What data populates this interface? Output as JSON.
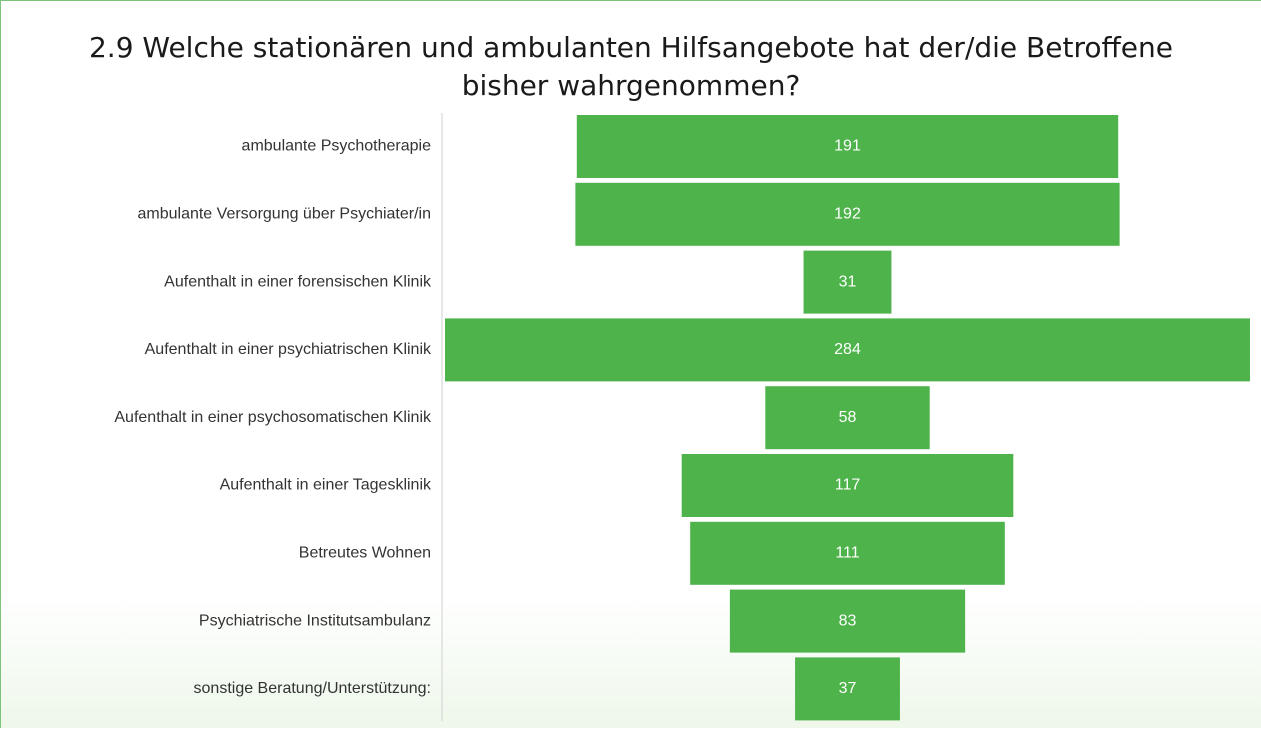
{
  "chart_data": {
    "type": "funnel",
    "title": "2.9 Welche stationären und ambulanten Hilfsangebote hat der/die Betroffene bisher wahrgenommen?",
    "categories": [
      "ambulante Psychotherapie",
      "ambulante Versorgung über Psychiater/in",
      "Aufenthalt in einer forensischen Klinik",
      "Aufenthalt in einer psychiatrischen Klinik",
      "Aufenthalt in einer psychosomatischen Klinik",
      "Aufenthalt in einer Tagesklinik",
      "Betreutes Wohnen",
      "Psychiatrische Institutsambulanz",
      "sonstige Beratung/Unterstützung:"
    ],
    "values": [
      191,
      192,
      31,
      284,
      58,
      117,
      111,
      83,
      37
    ],
    "color": "#4db34a"
  }
}
